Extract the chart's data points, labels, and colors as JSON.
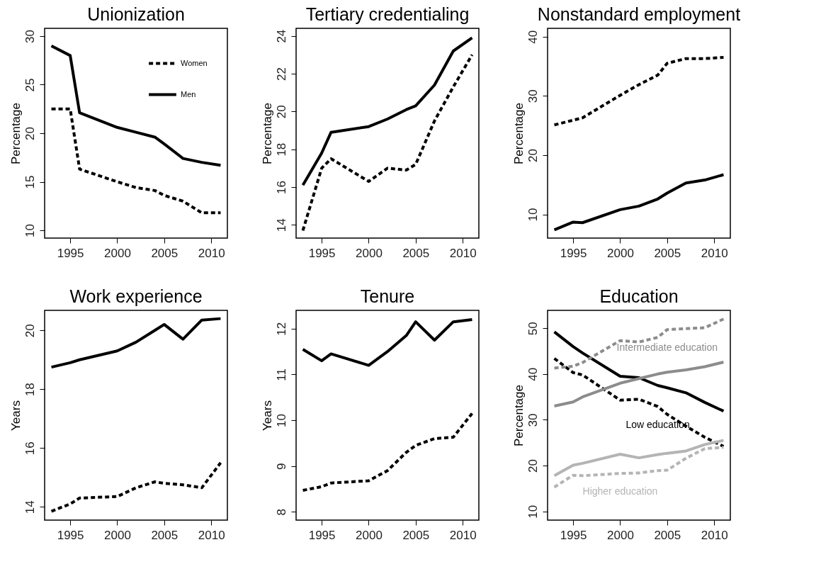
{
  "chart_data": [
    {
      "type": "line",
      "title": "Unionization",
      "ylabel": "Percentage",
      "x": [
        1993,
        1995,
        1996,
        2000,
        2002,
        2004,
        2005,
        2007,
        2009,
        2011
      ],
      "xlim": [
        1992.28,
        2011.72
      ],
      "xticks": [
        1995,
        2000,
        2005,
        2010
      ],
      "ylim": [
        9.2,
        30.8
      ],
      "yticks": [
        10,
        15,
        20,
        25,
        30
      ],
      "legend": "top right",
      "series": [
        {
          "name": "Women",
          "color": "#000000",
          "line_style": "dashed",
          "values": [
            22.5,
            22.5,
            16.3,
            15.0,
            14.4,
            14.1,
            13.6,
            13.0,
            11.8,
            11.8
          ]
        },
        {
          "name": "Men",
          "color": "#000000",
          "line_style": "solid",
          "values": [
            29.0,
            28.0,
            22.1,
            20.6,
            20.1,
            19.6,
            18.9,
            17.4,
            17.0,
            16.7
          ]
        }
      ]
    },
    {
      "type": "line",
      "title": "Tertiary credentialing",
      "ylabel": "Percentage",
      "x": [
        1993,
        1995,
        1996,
        2000,
        2002,
        2004,
        2005,
        2007,
        2009,
        2011
      ],
      "xlim": [
        1992.28,
        2011.72
      ],
      "xticks": [
        1995,
        2000,
        2005,
        2010
      ],
      "ylim": [
        13.3,
        24.4
      ],
      "yticks": [
        14,
        16,
        18,
        20,
        22,
        24
      ],
      "series": [
        {
          "color": "#000000",
          "line_style": "dashed",
          "values": [
            13.7,
            17.0,
            17.5,
            16.3,
            17.0,
            16.9,
            17.2,
            19.5,
            21.3,
            23.0
          ]
        },
        {
          "color": "#000000",
          "line_style": "solid",
          "values": [
            16.1,
            17.8,
            18.9,
            19.2,
            19.6,
            20.1,
            20.3,
            21.4,
            23.2,
            23.9
          ]
        }
      ]
    },
    {
      "type": "line",
      "title": "Nonstandard employment",
      "ylabel": "Percentage",
      "x": [
        1993,
        1995,
        1996,
        2000,
        2002,
        2004,
        2005,
        2007,
        2009,
        2011
      ],
      "xlim": [
        1992.28,
        2011.72
      ],
      "xticks": [
        1995,
        2000,
        2005,
        2010
      ],
      "ylim": [
        6.0,
        41.4
      ],
      "yticks": [
        10,
        20,
        30,
        40
      ],
      "series": [
        {
          "color": "#000000",
          "line_style": "dashed",
          "values": [
            25.1,
            25.9,
            26.3,
            30.1,
            31.9,
            33.5,
            35.5,
            36.3,
            36.3,
            36.5
          ]
        },
        {
          "color": "#000000",
          "line_style": "solid",
          "values": [
            7.4,
            8.7,
            8.6,
            10.8,
            11.4,
            12.6,
            13.6,
            15.3,
            15.8,
            16.7
          ]
        }
      ]
    },
    {
      "type": "line",
      "title": "Work experience",
      "ylabel": "Years",
      "x": [
        1993,
        1995,
        1996,
        2000,
        2002,
        2004,
        2005,
        2007,
        2009,
        2011
      ],
      "xlim": [
        1992.28,
        2011.72
      ],
      "xticks": [
        1995,
        2000,
        2005,
        2010
      ],
      "ylim": [
        13.55,
        20.68
      ],
      "yticks": [
        14,
        16,
        18,
        20
      ],
      "series": [
        {
          "color": "#000000",
          "line_style": "dashed",
          "values": [
            13.85,
            14.1,
            14.3,
            14.35,
            14.65,
            14.85,
            14.8,
            14.75,
            14.65,
            15.5
          ]
        },
        {
          "color": "#000000",
          "line_style": "solid",
          "values": [
            18.75,
            18.9,
            19.0,
            19.3,
            19.6,
            20.0,
            20.2,
            19.7,
            20.35,
            20.4
          ]
        }
      ]
    },
    {
      "type": "line",
      "title": "Tenure",
      "ylabel": "Years",
      "x": [
        1993,
        1995,
        1996,
        2000,
        2002,
        2004,
        2005,
        2007,
        2009,
        2011
      ],
      "xlim": [
        1992.28,
        2011.72
      ],
      "xticks": [
        1995,
        2000,
        2005,
        2010
      ],
      "ylim": [
        7.82,
        12.4
      ],
      "yticks": [
        8,
        9,
        10,
        11,
        12
      ],
      "series": [
        {
          "color": "#000000",
          "line_style": "dashed",
          "values": [
            8.47,
            8.55,
            8.63,
            8.68,
            8.9,
            9.3,
            9.45,
            9.6,
            9.63,
            10.15
          ]
        },
        {
          "color": "#000000",
          "line_style": "solid",
          "values": [
            11.55,
            11.3,
            11.45,
            11.2,
            11.5,
            11.85,
            12.15,
            11.75,
            12.15,
            12.2
          ]
        }
      ]
    },
    {
      "type": "line",
      "title": "Education",
      "ylabel": "Percentage",
      "x": [
        1993,
        1995,
        1996,
        2000,
        2002,
        2004,
        2005,
        2007,
        2009,
        2011
      ],
      "xlim": [
        1992.28,
        2011.72
      ],
      "xticks": [
        1995,
        2000,
        2005,
        2010
      ],
      "ylim": [
        8.1,
        53.9
      ],
      "yticks": [
        10,
        20,
        30,
        40,
        50
      ],
      "series": [
        {
          "color": "#000000",
          "line_style": "solid",
          "values": [
            49.2,
            46.0,
            44.6,
            39.5,
            39.2,
            37.5,
            37.0,
            35.9,
            33.8,
            31.9
          ]
        },
        {
          "color": "#000000",
          "line_style": "dashed",
          "values": [
            43.4,
            40.3,
            39.8,
            34.3,
            34.5,
            32.9,
            31.2,
            28.6,
            26.2,
            24.2
          ]
        },
        {
          "color": "#8c8c8c",
          "line_style": "solid",
          "values": [
            33.0,
            33.9,
            35.0,
            38.0,
            39.0,
            40.0,
            40.4,
            40.9,
            41.6,
            42.6
          ]
        },
        {
          "color": "#8c8c8c",
          "line_style": "dashed",
          "values": [
            41.3,
            41.7,
            42.5,
            47.3,
            47.0,
            48.0,
            49.7,
            49.9,
            50.1,
            52.0
          ]
        },
        {
          "color": "#b4b4b4",
          "line_style": "solid",
          "values": [
            17.8,
            20.1,
            20.5,
            22.5,
            21.7,
            22.4,
            22.7,
            23.2,
            24.6,
            25.5
          ]
        },
        {
          "color": "#b4b4b4",
          "line_style": "dashed",
          "values": [
            15.3,
            17.9,
            17.8,
            18.3,
            18.4,
            18.9,
            19.0,
            21.6,
            23.7,
            24.0
          ]
        }
      ],
      "annotations": [
        {
          "text": "Low education",
          "x": 2004,
          "y": 32.9
        },
        {
          "text": "Intermediate education",
          "x": 2005,
          "y": 49.7
        },
        {
          "text": "Higher education",
          "x": 2000,
          "y": 18.3
        }
      ]
    }
  ]
}
